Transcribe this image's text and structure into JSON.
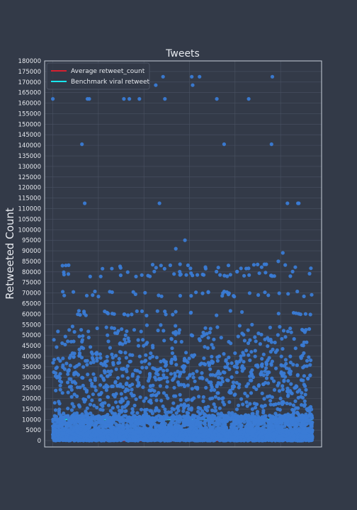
{
  "theme": {
    "background": "#333a48",
    "plot_background": "#333a48",
    "grid": "#4a5263",
    "frame": "#c9d0da",
    "text": "#e6e9ee",
    "point_color": "#3a7bd5",
    "average_color": "#d62030",
    "benchmark_color": "#18e7ee"
  },
  "chart_data": {
    "type": "scatter",
    "title": "Tweets",
    "xlabel": "",
    "ylabel": "Retweeted Count",
    "ylim": [
      -3000,
      180000
    ],
    "yticks": [
      0,
      5000,
      10000,
      15000,
      20000,
      25000,
      30000,
      35000,
      40000,
      45000,
      50000,
      55000,
      60000,
      65000,
      70000,
      75000,
      80000,
      85000,
      90000,
      95000,
      100000,
      105000,
      110000,
      115000,
      120000,
      125000,
      130000,
      135000,
      140000,
      145000,
      150000,
      155000,
      160000,
      165000,
      170000,
      175000,
      180000
    ],
    "ytick_labels": [
      "0",
      "5000",
      "10000",
      "15000",
      "20000",
      "25000",
      "30000",
      "35000",
      "40000",
      "45000",
      "50000",
      "55000",
      "60000",
      "65000",
      "70000",
      "75000",
      "80000",
      "85000",
      "90000",
      "95000",
      "100000",
      "105000",
      "110000",
      "115000",
      "120000",
      "125000",
      "130000",
      "135000",
      "140000",
      "145000",
      "150000",
      "155000",
      "160000",
      "165000",
      "170000",
      "175000",
      "180000"
    ],
    "xlim": [
      -180,
      5900
    ],
    "x_gridlines": [
      0,
      1000,
      2000,
      3000,
      4000,
      5000
    ],
    "grid": true,
    "legend_position": "top-left",
    "x_tick_labels_shown": false,
    "point_count_estimate": 5800,
    "legend": [
      {
        "label": "Average retweet_count",
        "kind": "line",
        "color": "#d62030"
      },
      {
        "label": "Benchmark viral retweet",
        "kind": "line",
        "color": "#18e7ee"
      }
    ],
    "reference_lines": [
      {
        "name": "Average retweet_count",
        "y": 0,
        "x_range": [
          0,
          5700
        ],
        "color": "#d62030"
      },
      {
        "name": "Benchmark viral retweet",
        "y": 10000,
        "x_range": [
          0,
          5700
        ],
        "color": "#18e7ee"
      }
    ],
    "notable_points": [
      {
        "x": 0,
        "y": 162000
      },
      {
        "x": 640,
        "y": 140500
      },
      {
        "x": 760,
        "y": 162000
      },
      {
        "x": 800,
        "y": 162000
      },
      {
        "x": 700,
        "y": 112500
      },
      {
        "x": 1560,
        "y": 162000
      },
      {
        "x": 1680,
        "y": 162000
      },
      {
        "x": 1900,
        "y": 162000
      },
      {
        "x": 2260,
        "y": 168500
      },
      {
        "x": 2420,
        "y": 172500
      },
      {
        "x": 2460,
        "y": 162000
      },
      {
        "x": 2340,
        "y": 112500
      },
      {
        "x": 3050,
        "y": 172500
      },
      {
        "x": 3070,
        "y": 168500
      },
      {
        "x": 3220,
        "y": 172500
      },
      {
        "x": 3600,
        "y": 162000
      },
      {
        "x": 3760,
        "y": 140500
      },
      {
        "x": 4300,
        "y": 162000
      },
      {
        "x": 4820,
        "y": 172500
      },
      {
        "x": 4800,
        "y": 140500
      },
      {
        "x": 5150,
        "y": 112500
      },
      {
        "x": 5380,
        "y": 112500
      },
      {
        "x": 5400,
        "y": 112500
      },
      {
        "x": 2900,
        "y": 95000
      },
      {
        "x": 2700,
        "y": 91000
      },
      {
        "x": 5050,
        "y": 89000
      },
      {
        "x": 4950,
        "y": 85000
      }
    ]
  }
}
